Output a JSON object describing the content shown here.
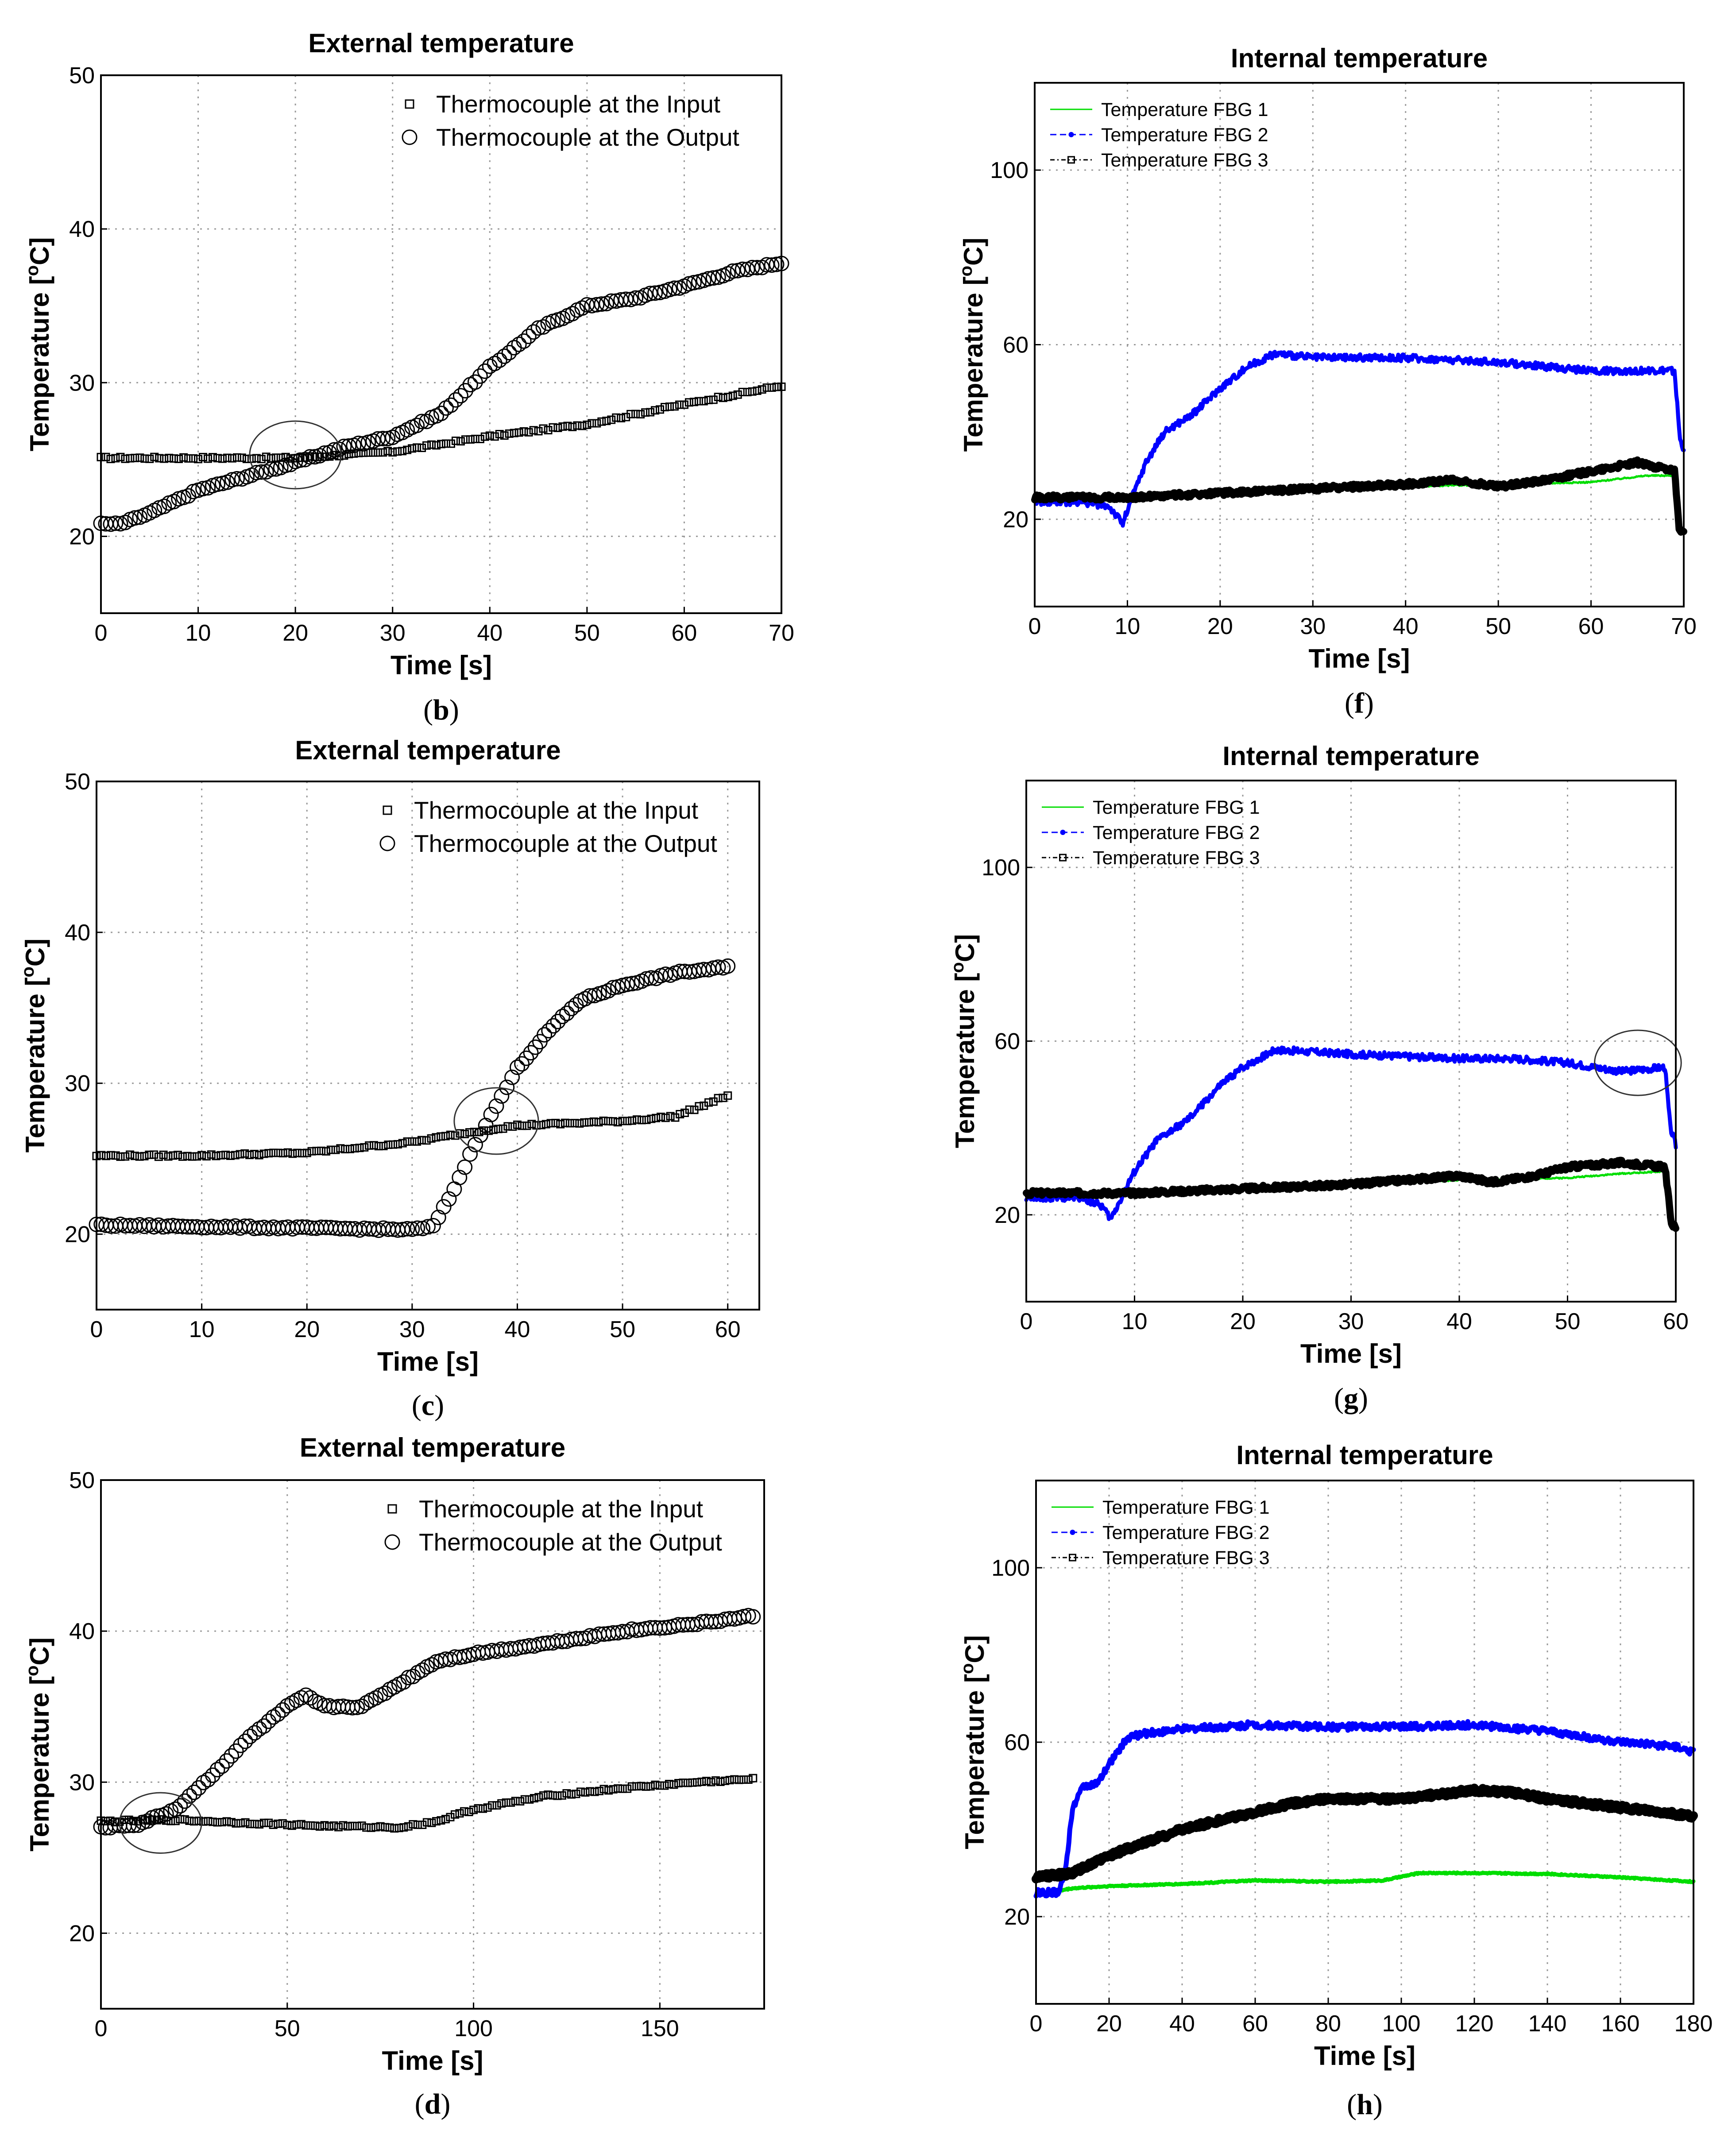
{
  "chart_data": [
    {
      "id": "b",
      "type": "scatter",
      "title": "External temperature",
      "xlabel": "Time [s]",
      "ylabel": "Temperature [oC]",
      "panel_label": "b",
      "xlim": [
        0,
        70
      ],
      "ylim": [
        15,
        50
      ],
      "xticks": [
        0,
        10,
        20,
        30,
        40,
        50,
        60,
        70
      ],
      "yticks": [
        20,
        30,
        40,
        50
      ],
      "grid": true,
      "legend_position": "top-right",
      "series": [
        {
          "name": "Thermocouple at the Input",
          "marker": "square",
          "color": "#000000",
          "points": [
            [
              0,
              25.1
            ],
            [
              10,
              25.1
            ],
            [
              20,
              25.1
            ],
            [
              30,
              25.5
            ],
            [
              40,
              26.5
            ],
            [
              50,
              27.3
            ],
            [
              60,
              28.6
            ],
            [
              70,
              29.8
            ]
          ]
        },
        {
          "name": "Thermocouple at the Output",
          "marker": "circle",
          "color": "#000000",
          "points": [
            [
              0,
              20.8
            ],
            [
              2,
              20.8
            ],
            [
              5,
              21.5
            ],
            [
              10,
              23
            ],
            [
              20,
              24.8
            ],
            [
              25,
              25.8
            ],
            [
              30,
              26.5
            ],
            [
              35,
              28
            ],
            [
              40,
              31
            ],
            [
              45,
              33.5
            ],
            [
              50,
              35
            ],
            [
              55,
              35.5
            ],
            [
              60,
              36.3
            ],
            [
              65,
              37.2
            ],
            [
              70,
              37.8
            ]
          ]
        }
      ],
      "annotation_circle": {
        "x": 20,
        "y": 25.3,
        "rx": 4.7,
        "ry": 2.2
      }
    },
    {
      "id": "f",
      "type": "line",
      "title": "Internal temperature",
      "xlabel": "Time [s]",
      "ylabel": "Temperature [oC]",
      "panel_label": "f",
      "xlim": [
        0,
        70
      ],
      "ylim": [
        0,
        120
      ],
      "xticks": [
        0,
        10,
        20,
        30,
        40,
        50,
        60,
        70
      ],
      "yticks": [
        20,
        60,
        100
      ],
      "grid": true,
      "legend_position": "top-left",
      "series": [
        {
          "name": "Temperature FBG 1",
          "marker": "line",
          "color": "#00dd00",
          "width": 5,
          "points": [
            [
              0,
              24
            ],
            [
              10,
              25
            ],
            [
              20,
              26
            ],
            [
              30,
              27
            ],
            [
              40,
              27.5
            ],
            [
              50,
              28
            ],
            [
              60,
              28.5
            ],
            [
              66,
              30
            ],
            [
              69,
              30
            ],
            [
              69.5,
              20
            ]
          ]
        },
        {
          "name": "Temperature FBG 2",
          "marker": "dot",
          "color": "#0000ff",
          "width": 9,
          "points": [
            [
              0,
              24
            ],
            [
              5,
              24
            ],
            [
              8,
              23
            ],
            [
              9.5,
              19
            ],
            [
              10.5,
              25
            ],
            [
              12,
              33
            ],
            [
              14,
              40
            ],
            [
              17,
              44
            ],
            [
              20,
              50
            ],
            [
              23,
              55
            ],
            [
              26,
              58
            ],
            [
              30,
              57
            ],
            [
              40,
              57
            ],
            [
              50,
              56
            ],
            [
              55,
              55
            ],
            [
              60,
              54
            ],
            [
              69,
              54
            ],
            [
              69.6,
              38
            ],
            [
              70,
              36
            ]
          ]
        },
        {
          "name": "Temperature FBG 3",
          "marker": "square",
          "color": "#000000",
          "width": 16,
          "points": [
            [
              0,
              25
            ],
            [
              10,
              25
            ],
            [
              20,
              26
            ],
            [
              30,
              27
            ],
            [
              40,
              28
            ],
            [
              45,
              29
            ],
            [
              50,
              27.5
            ],
            [
              55,
              29
            ],
            [
              60,
              31
            ],
            [
              65,
              33
            ],
            [
              69,
              31
            ],
            [
              69.5,
              18
            ],
            [
              70,
              17
            ]
          ]
        }
      ]
    },
    {
      "id": "c",
      "type": "scatter",
      "title": "External temperature",
      "xlabel": "Time [s]",
      "ylabel": "Temperature [oC]",
      "panel_label": "c",
      "xlim": [
        0,
        63
      ],
      "ylim": [
        15,
        50
      ],
      "xticks": [
        0,
        10,
        20,
        30,
        40,
        50,
        60
      ],
      "yticks": [
        20,
        30,
        40,
        50
      ],
      "grid": true,
      "legend_position": "top-right",
      "series": [
        {
          "name": "Thermocouple at the Input",
          "marker": "square",
          "color": "#000000",
          "points": [
            [
              0,
              25.2
            ],
            [
              10,
              25.2
            ],
            [
              20,
              25.4
            ],
            [
              30,
              26.1
            ],
            [
              35,
              26.7
            ],
            [
              40,
              27.2
            ],
            [
              50,
              27.5
            ],
            [
              55,
              27.8
            ],
            [
              60,
              29.2
            ]
          ]
        },
        {
          "name": "Thermocouple at the Output",
          "marker": "circle",
          "color": "#000000",
          "points": [
            [
              0,
              20.6
            ],
            [
              10,
              20.5
            ],
            [
              20,
              20.4
            ],
            [
              30,
              20.3
            ],
            [
              32,
              20.5
            ],
            [
              34,
              23
            ],
            [
              36,
              26
            ],
            [
              38,
              28.5
            ],
            [
              40,
              31
            ],
            [
              43,
              33.5
            ],
            [
              46,
              35.5
            ],
            [
              50,
              36.5
            ],
            [
              55,
              37.3
            ],
            [
              60,
              37.7
            ]
          ]
        }
      ],
      "annotation_circle": {
        "x": 38,
        "y": 27.5,
        "rx": 4,
        "ry": 2.2
      }
    },
    {
      "id": "g",
      "type": "line",
      "title": "Internal temperature",
      "xlabel": "Time [s]",
      "ylabel": "Temperature [oC]",
      "panel_label": "g",
      "xlim": [
        0,
        60
      ],
      "ylim": [
        0,
        120
      ],
      "xticks": [
        0,
        10,
        20,
        30,
        40,
        50,
        60
      ],
      "yticks": [
        20,
        60,
        100
      ],
      "grid": true,
      "legend_position": "top-left",
      "series": [
        {
          "name": "Temperature FBG 1",
          "marker": "line",
          "color": "#00dd00",
          "width": 5,
          "points": [
            [
              0,
              24
            ],
            [
              10,
              25
            ],
            [
              20,
              26
            ],
            [
              30,
              27
            ],
            [
              40,
              28
            ],
            [
              50,
              28.5
            ],
            [
              55,
              29.5
            ],
            [
              59,
              30
            ],
            [
              59.6,
              22
            ]
          ]
        },
        {
          "name": "Temperature FBG 2",
          "marker": "dot",
          "color": "#0000ff",
          "width": 9,
          "points": [
            [
              0,
              24
            ],
            [
              5,
              24
            ],
            [
              7,
              22
            ],
            [
              7.8,
              19
            ],
            [
              8.8,
              24
            ],
            [
              10,
              30
            ],
            [
              12,
              37
            ],
            [
              15,
              42
            ],
            [
              18,
              50
            ],
            [
              20,
              54
            ],
            [
              23,
              58
            ],
            [
              30,
              57
            ],
            [
              40,
              56
            ],
            [
              45,
              56
            ],
            [
              50,
              55
            ],
            [
              55,
              53
            ],
            [
              59,
              54
            ],
            [
              59.5,
              40
            ],
            [
              60,
              36
            ]
          ]
        },
        {
          "name": "Temperature FBG 3",
          "marker": "square",
          "color": "#000000",
          "width": 16,
          "points": [
            [
              0,
              25
            ],
            [
              10,
              25
            ],
            [
              20,
              26
            ],
            [
              30,
              27
            ],
            [
              40,
              29
            ],
            [
              43,
              27.5
            ],
            [
              47,
              29
            ],
            [
              50,
              31
            ],
            [
              55,
              32
            ],
            [
              59,
              31
            ],
            [
              59.6,
              18
            ],
            [
              60,
              17
            ]
          ]
        }
      ],
      "annotation_circle": {
        "x": 56.5,
        "y": 55,
        "rx": 4,
        "ry": 7.5
      }
    },
    {
      "id": "d",
      "type": "scatter",
      "title": "External temperature",
      "xlabel": "Time [s]",
      "ylabel": "Temperature [oC]",
      "panel_label": "d",
      "xlim": [
        0,
        178
      ],
      "ylim": [
        15,
        50
      ],
      "xticks": [
        0,
        50,
        100,
        150
      ],
      "yticks": [
        20,
        30,
        40,
        50
      ],
      "grid": true,
      "legend_position": "top-right",
      "series": [
        {
          "name": "Thermocouple at the Input",
          "marker": "square",
          "color": "#000000",
          "points": [
            [
              0,
              27.4
            ],
            [
              20,
              27.5
            ],
            [
              40,
              27.3
            ],
            [
              60,
              27.1
            ],
            [
              80,
              27
            ],
            [
              90,
              27.4
            ],
            [
              100,
              28.2
            ],
            [
              120,
              29.1
            ],
            [
              140,
              29.6
            ],
            [
              160,
              30
            ],
            [
              175,
              30.2
            ]
          ]
        },
        {
          "name": "Thermocouple at the Output",
          "marker": "circle",
          "color": "#000000",
          "points": [
            [
              0,
              27
            ],
            [
              10,
              27.2
            ],
            [
              20,
              28.2
            ],
            [
              30,
              30.5
            ],
            [
              40,
              33
            ],
            [
              50,
              35
            ],
            [
              55,
              35.7
            ],
            [
              60,
              35
            ],
            [
              70,
              35
            ],
            [
              80,
              36.5
            ],
            [
              90,
              38
            ],
            [
              100,
              38.5
            ],
            [
              120,
              39.2
            ],
            [
              140,
              40
            ],
            [
              160,
              40.5
            ],
            [
              175,
              41
            ]
          ]
        }
      ],
      "annotation_circle": {
        "x": 16,
        "y": 27.3,
        "rx": 11,
        "ry": 2
      }
    },
    {
      "id": "h",
      "type": "line",
      "title": "Internal temperature",
      "xlabel": "Time [s]",
      "ylabel": "Temperature [oC]",
      "panel_label": "h",
      "xlim": [
        0,
        180
      ],
      "ylim": [
        0,
        120
      ],
      "xticks": [
        0,
        20,
        40,
        60,
        80,
        100,
        120,
        140,
        160,
        180
      ],
      "yticks": [
        20,
        60,
        100
      ],
      "grid": true,
      "legend_position": "top-left",
      "series": [
        {
          "name": "Temperature FBG 1",
          "marker": "line",
          "color": "#00dd00",
          "width": 9,
          "points": [
            [
              0,
              25
            ],
            [
              10,
              26.5
            ],
            [
              20,
              27
            ],
            [
              40,
              27.5
            ],
            [
              60,
              28.3
            ],
            [
              80,
              28
            ],
            [
              95,
              28.3
            ],
            [
              105,
              30
            ],
            [
              120,
              30
            ],
            [
              140,
              29.8
            ],
            [
              160,
              29
            ],
            [
              180,
              28
            ]
          ]
        },
        {
          "name": "Temperature FBG 2",
          "marker": "dot",
          "color": "#0000ff",
          "width": 11,
          "points": [
            [
              0,
              25.5
            ],
            [
              6,
              25.5
            ],
            [
              8,
              30
            ],
            [
              10,
              45
            ],
            [
              13,
              50
            ],
            [
              17,
              50.5
            ],
            [
              20,
              55
            ],
            [
              25,
              61
            ],
            [
              30,
              62
            ],
            [
              40,
              63
            ],
            [
              60,
              64
            ],
            [
              80,
              63.5
            ],
            [
              100,
              63.5
            ],
            [
              120,
              64
            ],
            [
              140,
              62.5
            ],
            [
              160,
              60
            ],
            [
              175,
              59
            ],
            [
              180,
              57.5
            ]
          ]
        },
        {
          "name": "Temperature FBG 3",
          "marker": "square",
          "color": "#000000",
          "width": 20,
          "points": [
            [
              0,
              29
            ],
            [
              10,
              30
            ],
            [
              20,
              34
            ],
            [
              30,
              37
            ],
            [
              40,
              40
            ],
            [
              50,
              42
            ],
            [
              60,
              44
            ],
            [
              70,
              46
            ],
            [
              80,
              47
            ],
            [
              90,
              47
            ],
            [
              100,
              47
            ],
            [
              110,
              48
            ],
            [
              120,
              49
            ],
            [
              130,
              48.5
            ],
            [
              140,
              47
            ],
            [
              160,
              45
            ],
            [
              180,
              43
            ]
          ]
        }
      ]
    }
  ]
}
